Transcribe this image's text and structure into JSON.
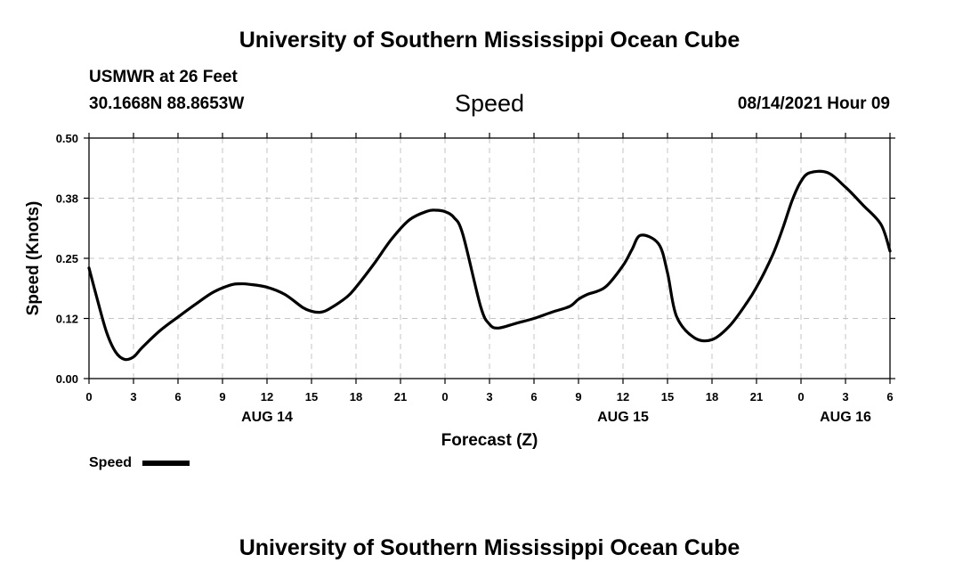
{
  "header": {
    "title": "University of Southern Mississippi Ocean Cube",
    "station": "USMWR at 26 Feet",
    "coords": "30.1668N  88.8653W",
    "variable": "Speed",
    "datetime": "08/14/2021 Hour 09"
  },
  "footer": {
    "title": "University of Southern Mississippi Ocean Cube"
  },
  "legend": {
    "label": "Speed"
  },
  "chart_data": {
    "type": "line",
    "xlabel": "Forecast (Z)",
    "ylabel": "Speed (Knots)",
    "xlim": [
      0,
      54
    ],
    "ylim": [
      0,
      0.5
    ],
    "y_ticks": [
      0,
      0.125,
      0.25,
      0.375,
      0.5
    ],
    "y_tick_labels": [
      "0.00",
      "0.12",
      "0.25",
      "0.38",
      "0.50"
    ],
    "x_ticks": [
      0,
      3,
      6,
      9,
      12,
      15,
      18,
      21,
      24,
      27,
      30,
      33,
      36,
      39,
      42,
      45,
      48,
      51,
      54
    ],
    "x_tick_labels": [
      "0",
      "3",
      "6",
      "9",
      "12",
      "15",
      "18",
      "21",
      "0",
      "3",
      "6",
      "9",
      "12",
      "15",
      "18",
      "21",
      "0",
      "3",
      "6"
    ],
    "date_labels": [
      {
        "x": 12,
        "label": "AUG 14"
      },
      {
        "x": 36,
        "label": "AUG 15"
      },
      {
        "x": 51,
        "label": "AUG 16"
      }
    ],
    "grid": true,
    "legend_position": "bottom-left",
    "series": [
      {
        "name": "Speed",
        "color": "#000000",
        "x": [
          0,
          0.6,
          1.2,
          1.8,
          2.4,
          3,
          3.6,
          4.8,
          6,
          7.2,
          8.4,
          9.6,
          10.2,
          10.8,
          12,
          13.2,
          14.4,
          15,
          15.6,
          16.2,
          17.4,
          18,
          19.2,
          20.4,
          21.6,
          22.8,
          23.4,
          24,
          24.6,
          25.2,
          26.4,
          27,
          27.6,
          28.8,
          30,
          31.2,
          32.4,
          33,
          33.6,
          34.8,
          36,
          36.6,
          37.2,
          38.4,
          39,
          39.6,
          40.8,
          42,
          43.2,
          44.4,
          45,
          45.6,
          46.2,
          46.8,
          47.4,
          48,
          48.6,
          49.8,
          51,
          52.2,
          53.4,
          54
        ],
        "y": [
          0.23,
          0.16,
          0.095,
          0.055,
          0.04,
          0.045,
          0.065,
          0.1,
          0.128,
          0.155,
          0.18,
          0.195,
          0.197,
          0.196,
          0.19,
          0.175,
          0.148,
          0.14,
          0.138,
          0.145,
          0.17,
          0.19,
          0.238,
          0.29,
          0.33,
          0.348,
          0.35,
          0.347,
          0.335,
          0.3,
          0.15,
          0.113,
          0.105,
          0.115,
          0.125,
          0.138,
          0.15,
          0.165,
          0.175,
          0.19,
          0.235,
          0.268,
          0.298,
          0.28,
          0.22,
          0.13,
          0.085,
          0.081,
          0.11,
          0.16,
          0.19,
          0.225,
          0.265,
          0.315,
          0.37,
          0.41,
          0.428,
          0.428,
          0.398,
          0.36,
          0.32,
          0.265
        ]
      }
    ]
  }
}
